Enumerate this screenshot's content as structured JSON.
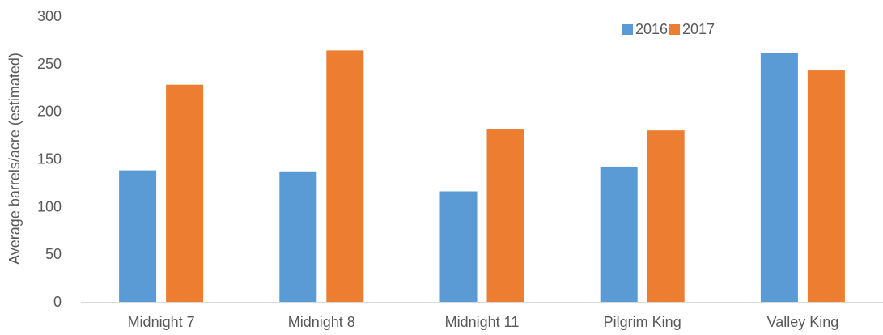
{
  "chart_data": {
    "type": "bar",
    "title": "",
    "xlabel": "",
    "ylabel": "Average barrels/acre (estimated)",
    "ylim": [
      0,
      300
    ],
    "yticks": [
      0,
      50,
      100,
      150,
      200,
      250,
      300
    ],
    "grid": false,
    "legend_position": "top-right",
    "categories": [
      "Midnight 7",
      "Midnight 8",
      "Midnight 11",
      "Pilgrim King",
      "Valley King"
    ],
    "series": [
      {
        "name": "2016",
        "color": "#5B9BD5",
        "values": [
          138,
          137,
          116,
          142,
          261
        ]
      },
      {
        "name": "2017",
        "color": "#ED7D31",
        "values": [
          228,
          264,
          181,
          180,
          243
        ]
      }
    ]
  }
}
